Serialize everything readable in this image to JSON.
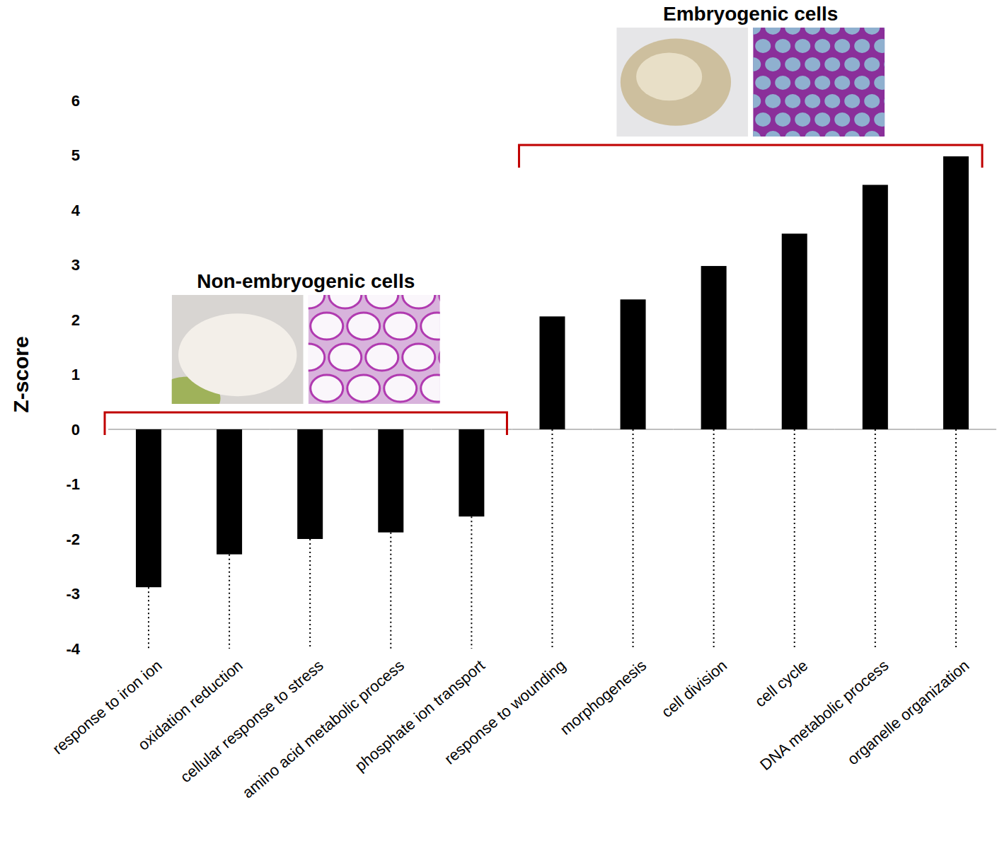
{
  "chart_data": {
    "type": "bar",
    "categories": [
      "response to iron ion",
      "oxidation reduction",
      "cellular response to stress",
      "amino acid metabolic process",
      "phosphate ion transport",
      "response to wounding",
      "morphogenesis",
      "cell division",
      "cell cycle",
      "DNA metabolic process",
      "organelle organization"
    ],
    "values": [
      -2.88,
      -2.28,
      -2.0,
      -1.88,
      -1.59,
      2.06,
      2.37,
      2.98,
      3.57,
      4.46,
      4.98
    ],
    "color": "#000000",
    "ylim": [
      -4,
      6
    ],
    "yticks": [
      -4,
      -3,
      -2,
      -1,
      0,
      1,
      2,
      3,
      4,
      5,
      6
    ],
    "grid": false,
    "y_label": "Z-score",
    "annotations": [
      "Non-embryogenic cells",
      "Embryogenic cells"
    ]
  }
}
